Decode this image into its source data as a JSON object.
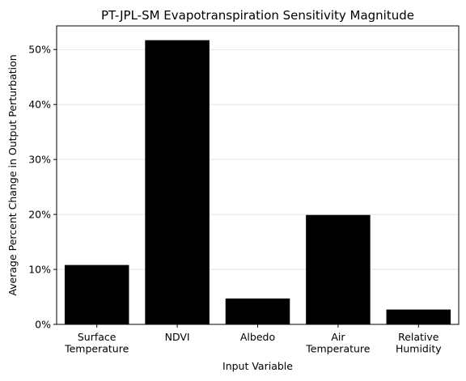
{
  "chart_data": {
    "type": "bar",
    "title": "PT-JPL-SM Evapotranspiration Sensitivity Magnitude",
    "xlabel": "Input Variable",
    "ylabel": "Average Percent Change in Output Perturbation",
    "categories": [
      [
        "Surface",
        "Temperature"
      ],
      [
        "NDVI"
      ],
      [
        "Albedo"
      ],
      [
        "Air",
        "Temperature"
      ],
      [
        "Relative",
        "Humidity"
      ]
    ],
    "values": [
      10.8,
      51.7,
      4.7,
      19.9,
      2.7
    ],
    "ylim": [
      0,
      54.3
    ],
    "yticks": [
      0,
      10,
      20,
      30,
      40,
      50
    ],
    "ytick_labels": [
      "0%",
      "10%",
      "20%",
      "30%",
      "40%",
      "50%"
    ],
    "grid": "horizontal",
    "bar_color": "#000000",
    "grid_color": "#dddddd"
  }
}
